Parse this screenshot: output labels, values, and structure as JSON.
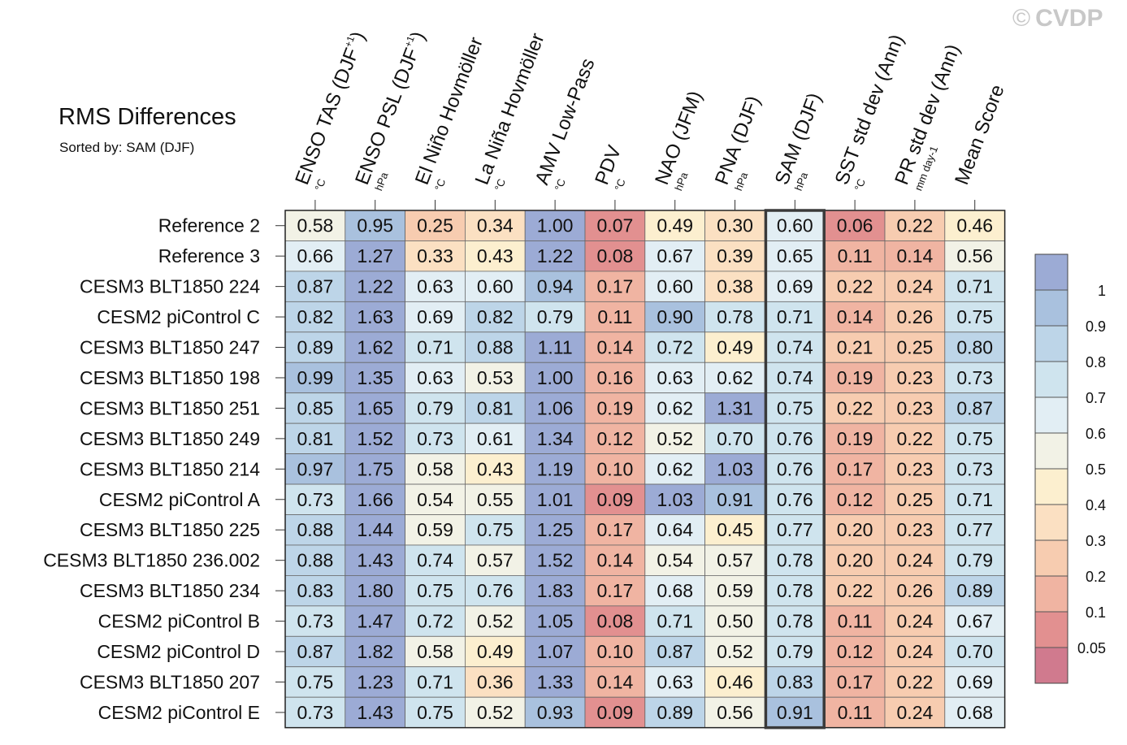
{
  "title": "RMS Differences",
  "subtitle": "Sorted by: SAM (DJF)",
  "watermark": {
    "symbol": "©",
    "text": "CVDP"
  },
  "chart_data": {
    "type": "heatmap",
    "highlighted_column": "SAM (DJF)",
    "columns": [
      {
        "label": "ENSO TAS (DJF",
        "sup": "+1",
        "close": ")",
        "units": "°C"
      },
      {
        "label": "ENSO PSL (DJF",
        "sup": "+1",
        "close": ")",
        "units": "hPa"
      },
      {
        "label": "El Niño Hovmöller",
        "sup": "",
        "close": "",
        "units": "°C"
      },
      {
        "label": "La Niña Hovmöller",
        "sup": "",
        "close": "",
        "units": "°C"
      },
      {
        "label": "AMV Low-Pass",
        "sup": "",
        "close": "",
        "units": "°C"
      },
      {
        "label": "PDV",
        "sup": "",
        "close": "",
        "units": "°C"
      },
      {
        "label": "NAO (JFM)",
        "sup": "",
        "close": "",
        "units": "hPa"
      },
      {
        "label": "PNA (DJF)",
        "sup": "",
        "close": "",
        "units": "hPa"
      },
      {
        "label": "SAM (DJF)",
        "sup": "",
        "close": "",
        "units": "hPa"
      },
      {
        "label": "SST std dev (Ann)",
        "sup": "",
        "close": "",
        "units": "°C"
      },
      {
        "label": "PR std dev (Ann)",
        "sup": "",
        "close": "",
        "units": "mm day-1"
      },
      {
        "label": "Mean Score",
        "sup": "",
        "close": "",
        "units": ""
      }
    ],
    "rows": [
      "Reference 2",
      "Reference 3",
      "CESM3 BLT1850 224",
      "CESM2 piControl C",
      "CESM3 BLT1850 247",
      "CESM3 BLT1850 198",
      "CESM3 BLT1850 251",
      "CESM3 BLT1850 249",
      "CESM3 BLT1850 214",
      "CESM2 piControl A",
      "CESM3 BLT1850 225",
      "CESM3 BLT1850 236.002",
      "CESM3 BLT1850 234",
      "CESM2 piControl B",
      "CESM2 piControl D",
      "CESM3 BLT1850 207",
      "CESM2 piControl E"
    ],
    "values": [
      [
        "0.58",
        "0.95",
        "0.25",
        "0.34",
        "1.00",
        "0.07",
        "0.49",
        "0.30",
        "0.60",
        "0.06",
        "0.22",
        "0.46"
      ],
      [
        "0.66",
        "1.27",
        "0.33",
        "0.43",
        "1.22",
        "0.08",
        "0.67",
        "0.39",
        "0.65",
        "0.11",
        "0.14",
        "0.56"
      ],
      [
        "0.87",
        "1.22",
        "0.63",
        "0.60",
        "0.94",
        "0.17",
        "0.60",
        "0.38",
        "0.69",
        "0.22",
        "0.24",
        "0.71"
      ],
      [
        "0.82",
        "1.63",
        "0.69",
        "0.82",
        "0.79",
        "0.11",
        "0.90",
        "0.78",
        "0.71",
        "0.14",
        "0.26",
        "0.75"
      ],
      [
        "0.89",
        "1.62",
        "0.71",
        "0.88",
        "1.11",
        "0.14",
        "0.72",
        "0.49",
        "0.74",
        "0.21",
        "0.25",
        "0.80"
      ],
      [
        "0.99",
        "1.35",
        "0.63",
        "0.53",
        "1.00",
        "0.16",
        "0.63",
        "0.62",
        "0.74",
        "0.19",
        "0.23",
        "0.73"
      ],
      [
        "0.85",
        "1.65",
        "0.79",
        "0.81",
        "1.06",
        "0.19",
        "0.62",
        "1.31",
        "0.75",
        "0.22",
        "0.23",
        "0.87"
      ],
      [
        "0.81",
        "1.52",
        "0.73",
        "0.61",
        "1.34",
        "0.12",
        "0.52",
        "0.70",
        "0.76",
        "0.19",
        "0.22",
        "0.75"
      ],
      [
        "0.97",
        "1.75",
        "0.58",
        "0.43",
        "1.19",
        "0.10",
        "0.62",
        "1.03",
        "0.76",
        "0.17",
        "0.23",
        "0.73"
      ],
      [
        "0.73",
        "1.66",
        "0.54",
        "0.55",
        "1.01",
        "0.09",
        "1.03",
        "0.91",
        "0.76",
        "0.12",
        "0.25",
        "0.71"
      ],
      [
        "0.88",
        "1.44",
        "0.59",
        "0.75",
        "1.25",
        "0.17",
        "0.64",
        "0.45",
        "0.77",
        "0.20",
        "0.23",
        "0.77"
      ],
      [
        "0.88",
        "1.43",
        "0.74",
        "0.57",
        "1.52",
        "0.14",
        "0.54",
        "0.57",
        "0.78",
        "0.20",
        "0.24",
        "0.79"
      ],
      [
        "0.83",
        "1.80",
        "0.75",
        "0.76",
        "1.83",
        "0.17",
        "0.68",
        "0.59",
        "0.78",
        "0.22",
        "0.26",
        "0.89"
      ],
      [
        "0.73",
        "1.47",
        "0.72",
        "0.52",
        "1.05",
        "0.08",
        "0.71",
        "0.50",
        "0.78",
        "0.11",
        "0.24",
        "0.67"
      ],
      [
        "0.87",
        "1.82",
        "0.58",
        "0.49",
        "1.07",
        "0.10",
        "0.87",
        "0.52",
        "0.79",
        "0.12",
        "0.24",
        "0.70"
      ],
      [
        "0.75",
        "1.23",
        "0.71",
        "0.36",
        "1.33",
        "0.14",
        "0.63",
        "0.46",
        "0.83",
        "0.17",
        "0.22",
        "0.69"
      ],
      [
        "0.73",
        "1.43",
        "0.75",
        "0.52",
        "0.93",
        "0.09",
        "0.89",
        "0.56",
        "0.91",
        "0.11",
        "0.24",
        "0.68"
      ]
    ],
    "colorbar": {
      "tick_labels": [
        "1",
        "0.9",
        "0.8",
        "0.7",
        "0.6",
        "0.5",
        "0.4",
        "0.3",
        "0.2",
        "0.1",
        "0.05"
      ],
      "levels": [
        0.05,
        0.1,
        0.2,
        0.3,
        0.4,
        0.5,
        0.6,
        0.7,
        0.8,
        0.9,
        1.0
      ],
      "colors": [
        "#d07a8e",
        "#e29090",
        "#f0b4a2",
        "#f7ccb0",
        "#fbe0c2",
        "#fcefcf",
        "#f2f2e6",
        "#e2eef4",
        "#cfe4ee",
        "#bdd5e8",
        "#a9c1de",
        "#9cabd5"
      ]
    }
  }
}
